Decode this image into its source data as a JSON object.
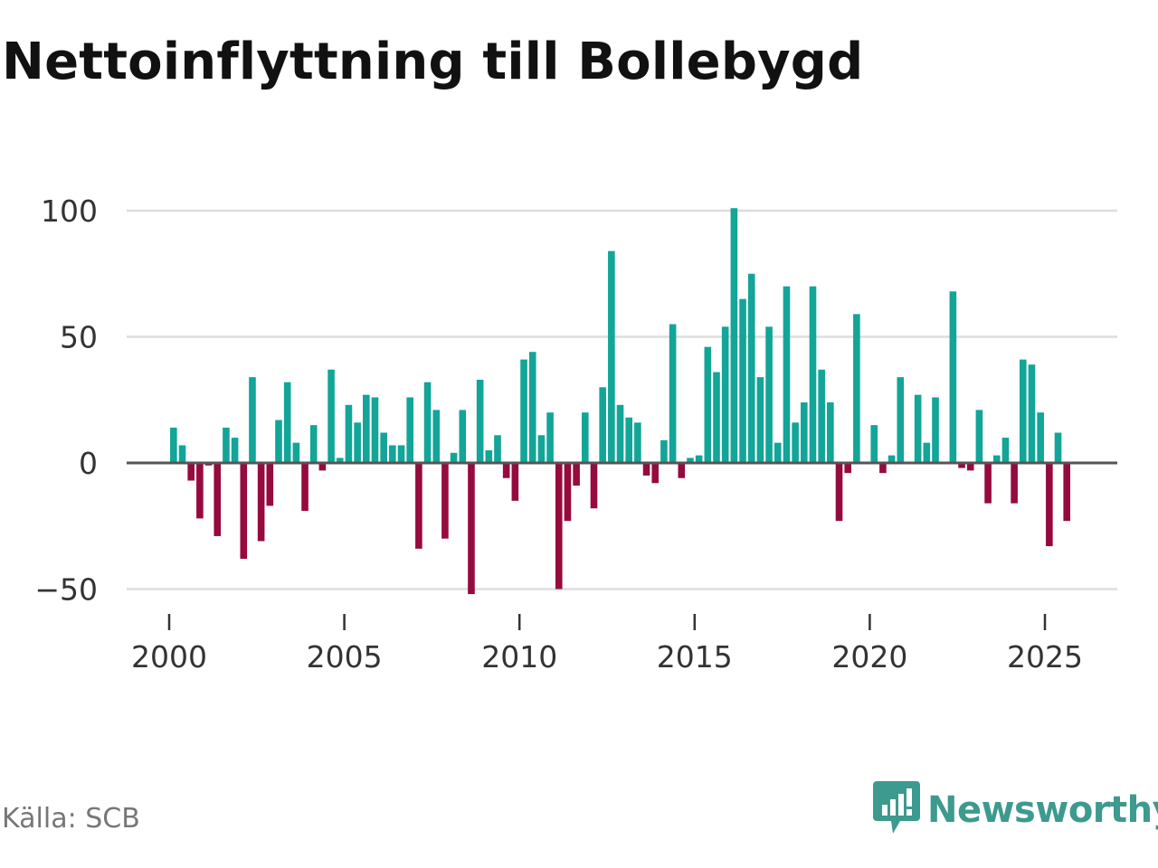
{
  "colors": {
    "positive": "#12a598",
    "negative": "#960a3e",
    "grid": "#dddddd",
    "baseline": "#555555",
    "brand": "#3d9a8e"
  },
  "source": "Källa: SCB",
  "brand": {
    "name": "Newsworthy",
    "icon": "bar-chart-speech-bubble-icon"
  },
  "chart_data": {
    "type": "bar",
    "title": "Nettoinflyttning till Bollebygd",
    "xlabel": "",
    "ylabel": "",
    "ylim": [
      -55,
      104
    ],
    "yticks": [
      100,
      50,
      0,
      -50
    ],
    "ytick_labels": [
      "100",
      "50",
      "0",
      "−50"
    ],
    "xticks": [
      2000,
      2005,
      2010,
      2015,
      2020,
      2025
    ],
    "xtick_labels": [
      "2000",
      "2005",
      "2010",
      "2015",
      "2020",
      "2025"
    ],
    "grid": true,
    "x_unit": "quarter",
    "start": [
      2000,
      1
    ],
    "series": [
      {
        "name": "Nettoinflyttning",
        "values": [
          14,
          7,
          -7,
          -22,
          -1,
          -29,
          14,
          10,
          -38,
          34,
          -31,
          -17,
          17,
          32,
          8,
          -19,
          15,
          -3,
          37,
          2,
          23,
          16,
          27,
          26,
          12,
          7,
          7,
          26,
          -34,
          32,
          21,
          -30,
          4,
          21,
          -52,
          33,
          5,
          11,
          -6,
          -15,
          41,
          44,
          11,
          20,
          -50,
          -23,
          -9,
          20,
          -18,
          30,
          84,
          23,
          18,
          16,
          -5,
          -8,
          9,
          55,
          -6,
          2,
          3,
          46,
          36,
          54,
          101,
          65,
          75,
          34,
          54,
          8,
          70,
          16,
          24,
          70,
          37,
          24,
          -23,
          -4,
          59,
          0,
          15,
          -4,
          3,
          34,
          0,
          27,
          8,
          26,
          0,
          68,
          -2,
          -3,
          21,
          -16,
          3,
          10,
          -16,
          41,
          39,
          20,
          -33,
          12,
          -23
        ]
      }
    ]
  }
}
